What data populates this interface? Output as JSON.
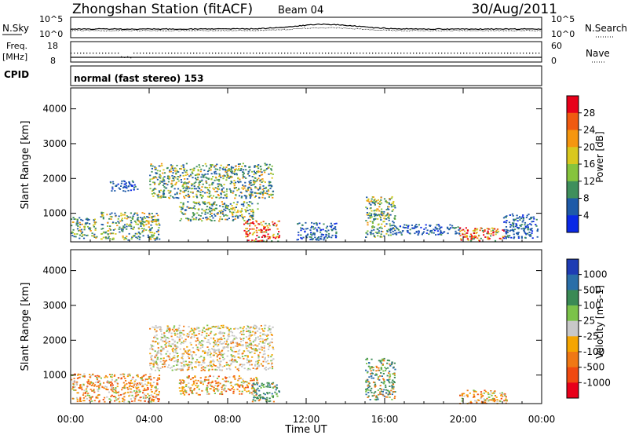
{
  "header": {
    "station": "Zhongshan Station (fitACF)",
    "beam": "Beam 04",
    "date": "30/Aug/2011"
  },
  "strip_labels": {
    "nsky": "N.Sky",
    "freq_line1": "Freq.",
    "freq_line2": "[MHz]",
    "cpid": "CPID",
    "nsearch": "N.Search",
    "nave": "Nave",
    "nsky_ticks": [
      "10^5",
      "10^0"
    ],
    "freq_ticks": [
      "18",
      "8"
    ],
    "nave_ticks": [
      "60",
      "0"
    ],
    "cpid_text": "normal (fast stereo) 153"
  },
  "axes": {
    "ylabel": "Slant Range [km]",
    "xlabel": "Time UT",
    "yticks": [
      "4000",
      "3000",
      "2000",
      "1000"
    ],
    "xticks": [
      "00:00",
      "04:00",
      "08:00",
      "12:00",
      "16:00",
      "20:00",
      "00:00"
    ]
  },
  "colorbars": {
    "power": {
      "title": "Power [dB]",
      "labels": [
        "28",
        "24",
        "20",
        "16",
        "12",
        "8",
        "4"
      ],
      "colors": [
        "#e8001a",
        "#f05a10",
        "#f5960f",
        "#d9c81e",
        "#86c43d",
        "#3f8f5c",
        "#1e5aa8",
        "#0a28e6"
      ]
    },
    "velocity": {
      "title": "Velocity [m s-1]",
      "labels": [
        "1000",
        "500",
        "100",
        "25",
        "-25",
        "-100",
        "-500",
        "-1000"
      ],
      "colors": [
        "#1e3cb4",
        "#2a6ea8",
        "#3a8a55",
        "#7bc24a",
        "#c8c8c8",
        "#f5a500",
        "#f07814",
        "#f04a10",
        "#e8001a"
      ]
    }
  },
  "colors": {
    "power_blue": "#1e5aa8",
    "power_green": "#3f8f5c",
    "power_yellow": "#d9c81e",
    "power_red": "#e8001a",
    "vel_grey": "#c8c8c8",
    "vel_orange": "#f07814",
    "vel_green": "#3a8a55"
  },
  "chart_data": {
    "type": "heatmap",
    "title": "Zhongshan Station (fitACF)",
    "xlabel": "Time UT",
    "ylabel": "Slant Range [km]",
    "xlim": [
      0,
      24
    ],
    "ylim": [
      180,
      4600
    ],
    "x_ticks_hours": [
      0,
      4,
      8,
      12,
      16,
      20,
      24
    ],
    "y_ticks_km": [
      1000,
      2000,
      3000,
      4000
    ],
    "power_scatter_regions": [
      {
        "t0": 0.0,
        "t1": 1.3,
        "r0": 300,
        "r1": 900,
        "level": "mixed"
      },
      {
        "t0": 1.5,
        "t1": 4.5,
        "r0": 250,
        "r1": 1050,
        "level": "mixed"
      },
      {
        "t0": 1.9,
        "t1": 3.4,
        "r0": 1650,
        "r1": 1950,
        "level": "blue"
      },
      {
        "t0": 4.0,
        "t1": 10.3,
        "r0": 1450,
        "r1": 2450,
        "level": "mixed"
      },
      {
        "t0": 5.5,
        "t1": 9.5,
        "r0": 800,
        "r1": 1350,
        "level": "mixed"
      },
      {
        "t0": 8.8,
        "t1": 10.6,
        "r0": 200,
        "r1": 800,
        "level": "red"
      },
      {
        "t0": 11.5,
        "t1": 13.5,
        "r0": 250,
        "r1": 750,
        "level": "blue"
      },
      {
        "t0": 15.0,
        "t1": 16.5,
        "r0": 300,
        "r1": 1500,
        "level": "mixed"
      },
      {
        "t0": 16.2,
        "t1": 19.8,
        "r0": 400,
        "r1": 700,
        "level": "blue"
      },
      {
        "t0": 19.8,
        "t1": 22.2,
        "r0": 200,
        "r1": 600,
        "level": "red"
      },
      {
        "t0": 22.0,
        "t1": 23.8,
        "r0": 300,
        "r1": 1000,
        "level": "blue"
      }
    ],
    "velocity_scatter_regions": [
      {
        "t0": 0.0,
        "t1": 4.5,
        "r0": 250,
        "r1": 1050,
        "level": "orange"
      },
      {
        "t0": 4.0,
        "t1": 10.3,
        "r0": 1150,
        "r1": 2450,
        "level": "grey"
      },
      {
        "t0": 5.5,
        "t1": 9.5,
        "r0": 450,
        "r1": 1000,
        "level": "orange"
      },
      {
        "t0": 9.2,
        "t1": 10.6,
        "r0": 250,
        "r1": 800,
        "level": "green"
      },
      {
        "t0": 15.0,
        "t1": 16.5,
        "r0": 300,
        "r1": 1500,
        "level": "green"
      },
      {
        "t0": 19.8,
        "t1": 22.2,
        "r0": 200,
        "r1": 600,
        "level": "orange"
      }
    ]
  }
}
